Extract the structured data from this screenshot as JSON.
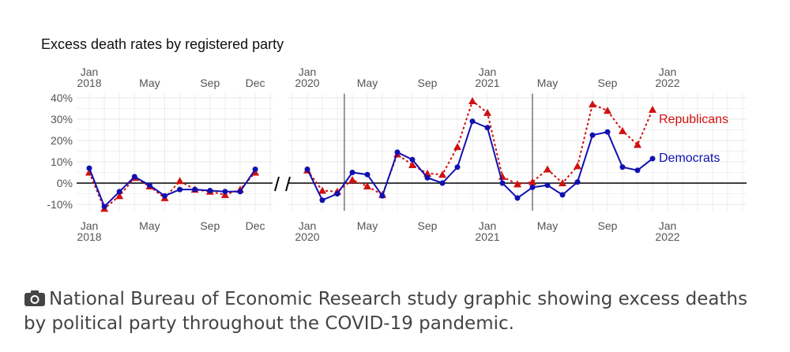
{
  "chart_data": {
    "type": "line",
    "title": "Excess death rates by registered party",
    "ylabel": "",
    "xlabel": "",
    "ylim": [
      -13,
      40
    ],
    "yticks": [
      "40%",
      "30%",
      "20%",
      "10%",
      "0%",
      "-10%"
    ],
    "ytick_values": [
      40,
      30,
      20,
      10,
      0,
      -10
    ],
    "grid": true,
    "axis_break": true,
    "panels": [
      {
        "xticks": [
          {
            "x": "2018-01",
            "label": "Jan",
            "label2": "2018"
          },
          {
            "x": "2018-05",
            "label": "May",
            "label2": ""
          },
          {
            "x": "2018-09",
            "label": "Sep",
            "label2": ""
          },
          {
            "x": "2018-12",
            "label": "Dec",
            "label2": ""
          }
        ],
        "x": [
          "2018-01",
          "2018-02",
          "2018-03",
          "2018-04",
          "2018-05",
          "2018-06",
          "2018-07",
          "2018-08",
          "2018-09",
          "2018-10",
          "2018-11",
          "2018-12"
        ],
        "series": [
          {
            "name": "Democrats",
            "color": "#1010b0",
            "style": "solid-circle",
            "values": [
              7,
              -11,
              -4,
              3,
              -1,
              -6,
              -3,
              -3,
              -3.5,
              -4,
              -4,
              6.5
            ]
          },
          {
            "name": "Republicans",
            "color": "#d01010",
            "style": "dotted-triangle",
            "values": [
              5,
              -12,
              -6,
              2.5,
              -1.5,
              -7,
              1,
              -3,
              -4,
              -5.5,
              -3,
              5
            ]
          }
        ]
      },
      {
        "xticks": [
          {
            "x": "2020-01",
            "label": "Jan",
            "label2": "2020"
          },
          {
            "x": "2020-05",
            "label": "May",
            "label2": ""
          },
          {
            "x": "2020-09",
            "label": "Sep",
            "label2": ""
          },
          {
            "x": "2021-01",
            "label": "Jan",
            "label2": "2021"
          },
          {
            "x": "2021-05",
            "label": "May",
            "label2": ""
          },
          {
            "x": "2021-09",
            "label": "Sep",
            "label2": ""
          },
          {
            "x": "2022-01",
            "label": "Jan",
            "label2": "2022"
          }
        ],
        "vlines": [
          "2020-03-15",
          "2021-04-01"
        ],
        "x": [
          "2020-01",
          "2020-02",
          "2020-03",
          "2020-04",
          "2020-05",
          "2020-06",
          "2020-07",
          "2020-08",
          "2020-09",
          "2020-10",
          "2020-11",
          "2020-12",
          "2021-01",
          "2021-02",
          "2021-03",
          "2021-04",
          "2021-05",
          "2021-06",
          "2021-07",
          "2021-08",
          "2021-09",
          "2021-10",
          "2021-11",
          "2021-12"
        ],
        "series": [
          {
            "name": "Democrats",
            "color": "#1010b0",
            "style": "solid-circle",
            "values": [
              6.5,
              -8,
              -5,
              5,
              4,
              -6,
              14.5,
              11,
              2.5,
              0,
              7.5,
              29,
              26,
              0,
              -7,
              -2,
              -1,
              -5.5,
              0.5,
              22.5,
              24,
              7.5,
              6,
              11.5
            ]
          },
          {
            "name": "Republicans",
            "color": "#d01010",
            "style": "dotted-triangle",
            "values": [
              6,
              -3.5,
              -4,
              1.5,
              -1.5,
              -5.5,
              13.5,
              8.5,
              4.5,
              4,
              17,
              38.5,
              33,
              3,
              -0.5,
              0.5,
              6.5,
              0,
              8,
              37,
              34,
              24.5,
              18,
              34.5
            ]
          }
        ]
      }
    ],
    "legend": "direct-labels-right"
  },
  "caption": {
    "icon": "camera-icon",
    "text": "National Bureau of Economic Research study graphic showing excess deaths by political party throughout the COVID-19 pandemic."
  }
}
